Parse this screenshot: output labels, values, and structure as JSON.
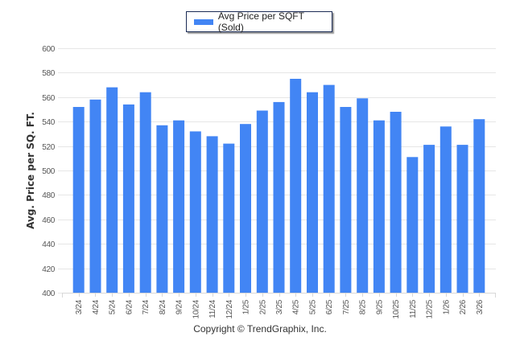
{
  "legend": {
    "label": "Avg Price per SQFT (Sold)",
    "icon": "legend-swatch"
  },
  "footer": {
    "copyright": "Copyright © TrendGraphix, Inc."
  },
  "colors": {
    "bar": "#4285f4",
    "grid": "#e6e6e6",
    "axis": "#d8d8d8"
  },
  "chart_data": {
    "type": "bar",
    "title": "",
    "xlabel": "",
    "ylabel": "Avg. Price per SQ. FT.",
    "ylim": [
      400,
      600
    ],
    "yticks": [
      400,
      420,
      440,
      460,
      480,
      500,
      520,
      540,
      560,
      580,
      600
    ],
    "grid": true,
    "legend_position": "top-center",
    "categories": [
      "3/24",
      "4/24",
      "5/24",
      "6/24",
      "7/24",
      "8/24",
      "9/24",
      "10/24",
      "11/24",
      "12/24",
      "1/25",
      "2/25",
      "3/25",
      "4/25",
      "5/25",
      "6/25",
      "7/25",
      "8/25",
      "9/25",
      "10/25",
      "11/25",
      "12/25",
      "1/26",
      "2/26",
      "3/26"
    ],
    "series": [
      {
        "name": "Avg Price per SQFT (Sold)",
        "values": [
          552,
          558,
          568,
          554,
          564,
          537,
          541,
          532,
          528,
          522,
          538,
          549,
          556,
          575,
          564,
          570,
          552,
          559,
          541,
          548,
          511,
          521,
          536,
          521,
          542
        ]
      }
    ]
  }
}
